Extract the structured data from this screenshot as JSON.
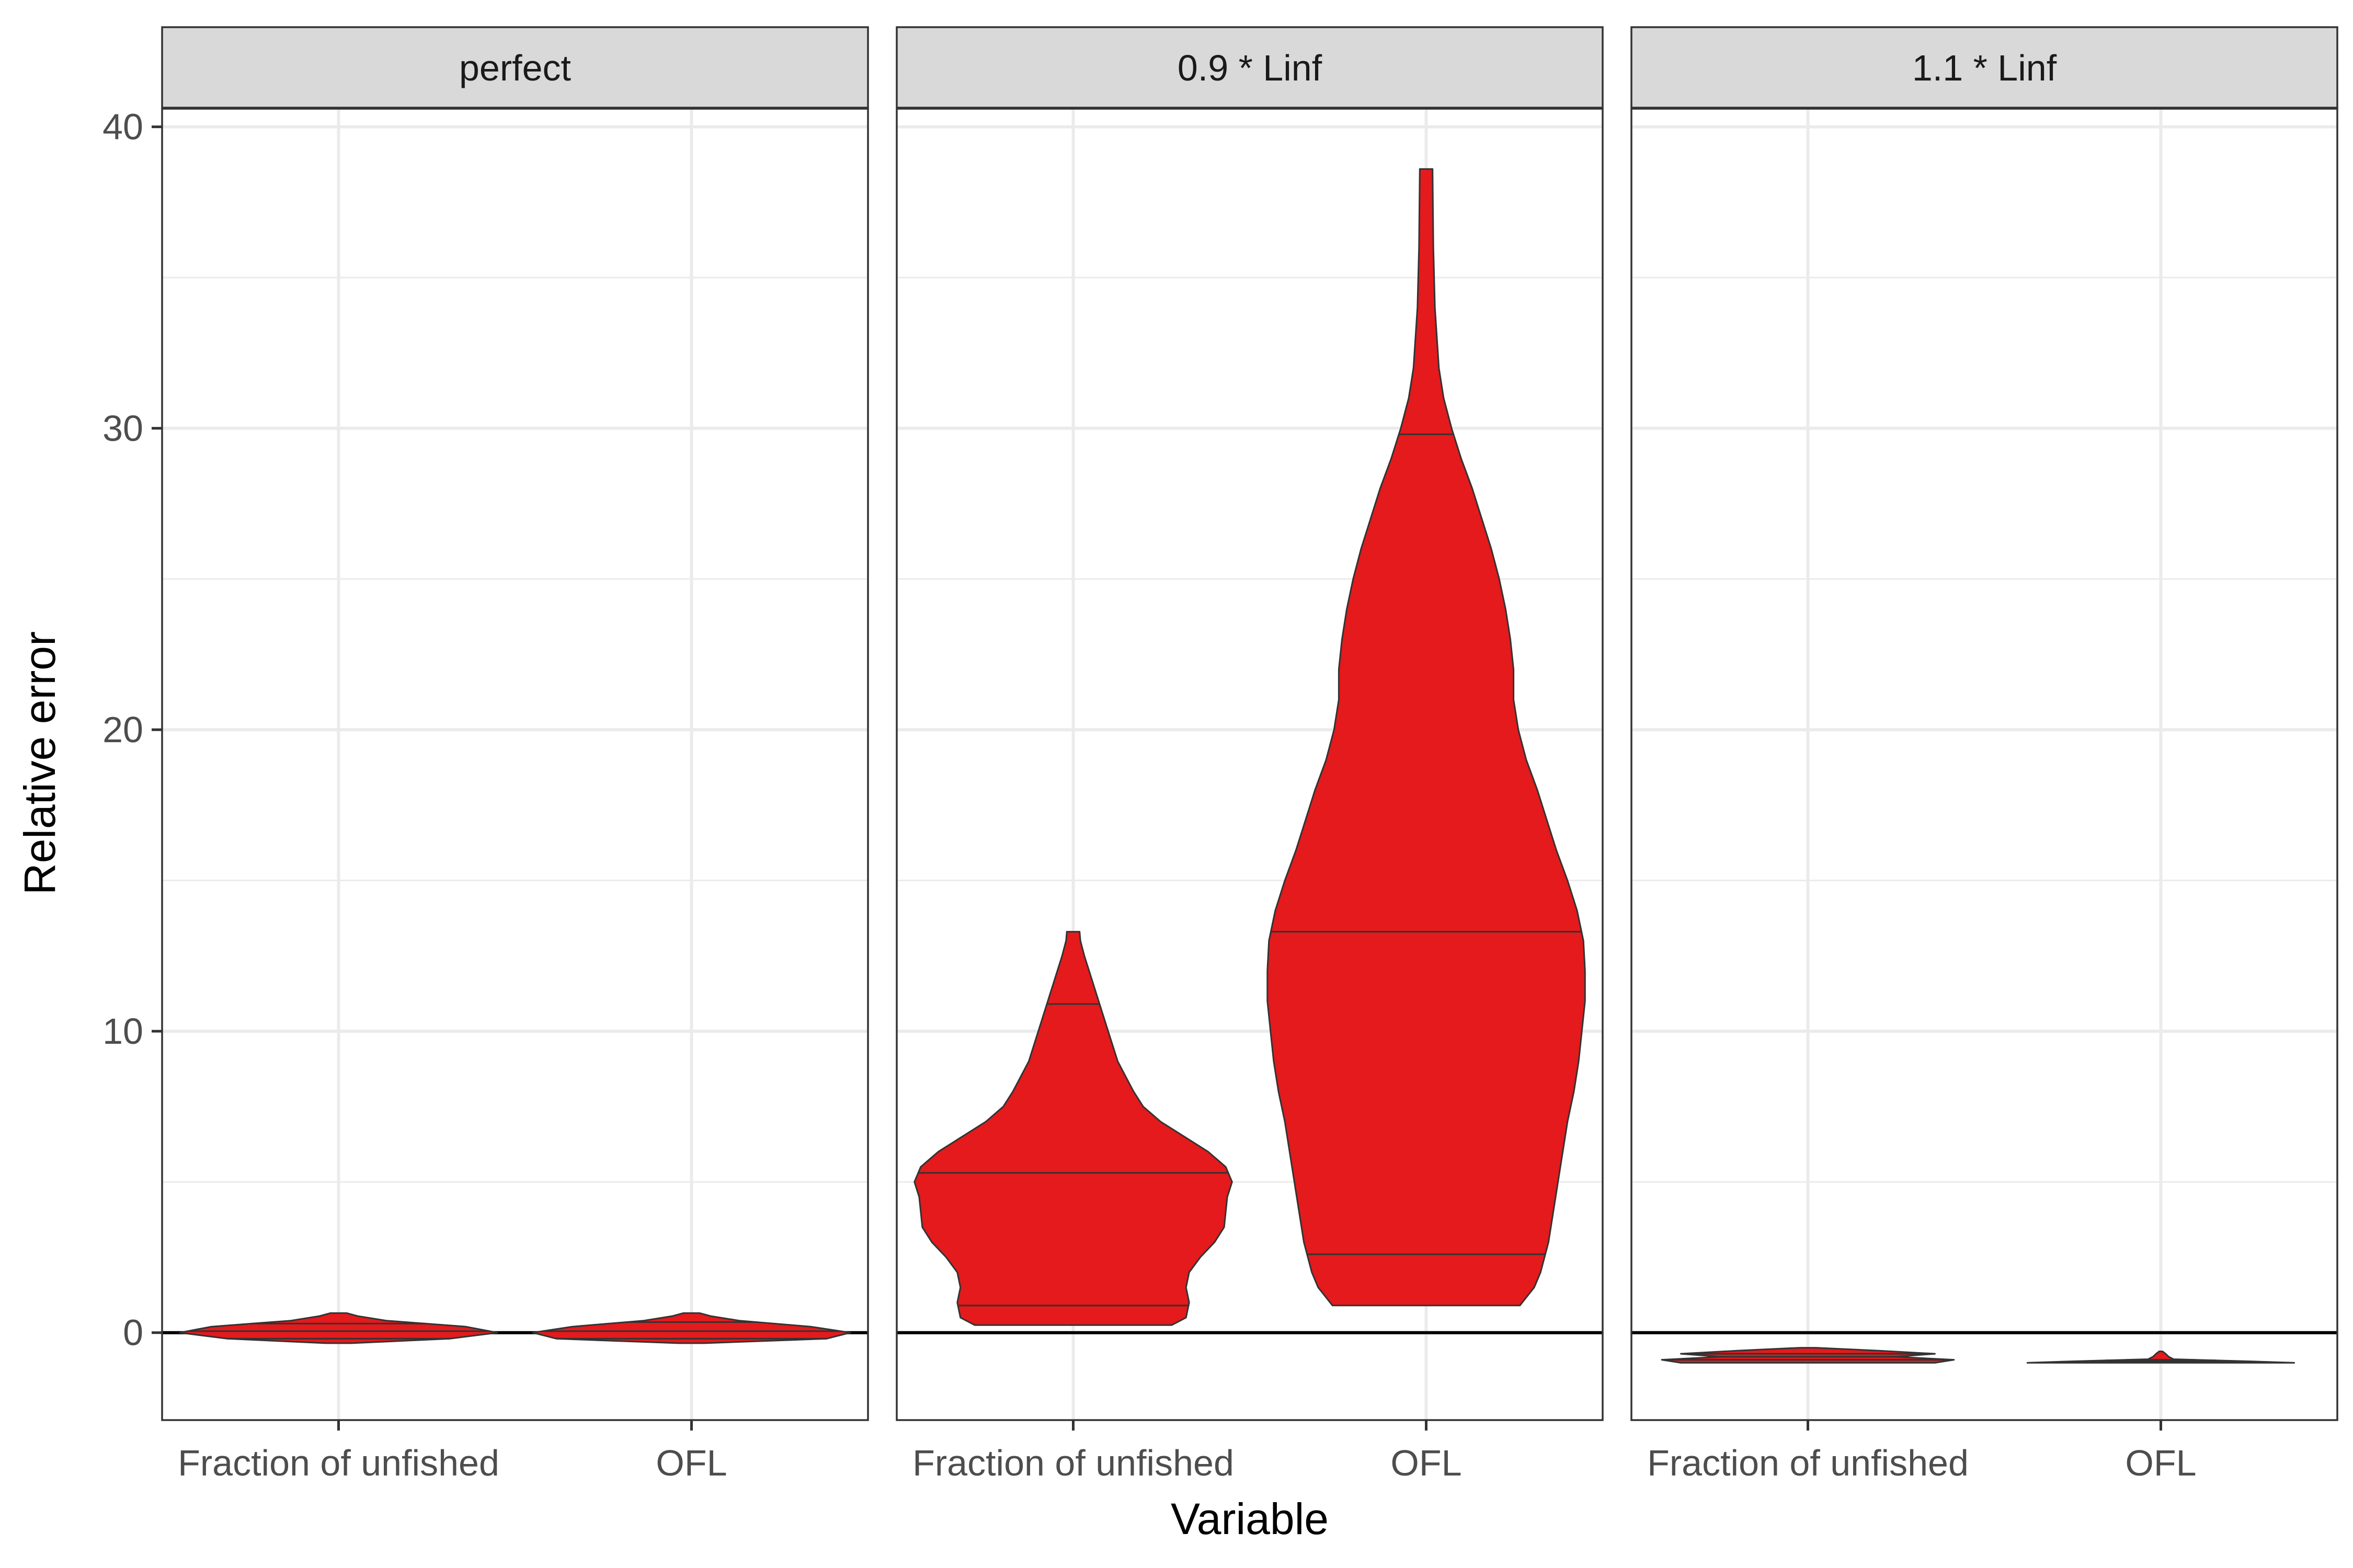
{
  "chart_data": {
    "type": "violin",
    "ylabel": "Relative error",
    "xlabel": "Variable",
    "ylim": [
      -2.9,
      40.6
    ],
    "y_ticks": [
      0,
      10,
      20,
      30,
      40
    ],
    "y_tick_labels": [
      "0",
      "10",
      "20",
      "30",
      "40"
    ],
    "categories": [
      "Fraction of unfished",
      "OFL"
    ],
    "reference_line_y": 0,
    "grid": true,
    "fill_color": "#E41A1C",
    "outline_color": "#333333",
    "strip_fill": "#D9D9D9",
    "panels": [
      {
        "strip_label": "perfect",
        "violins": [
          {
            "category": "Fraction of unfished",
            "quantiles": [
              -0.2,
              0.05,
              0.3
            ],
            "profile": [
              [
                -0.35,
                0.08
              ],
              [
                -0.2,
                0.7
              ],
              [
                0,
                1.0
              ],
              [
                0.2,
                0.8
              ],
              [
                0.4,
                0.3
              ],
              [
                0.55,
                0.12
              ],
              [
                0.65,
                0.05
              ]
            ]
          },
          {
            "category": "OFL",
            "quantiles": [
              -0.2,
              0.05,
              0.35
            ],
            "profile": [
              [
                -0.35,
                0.08
              ],
              [
                -0.2,
                0.85
              ],
              [
                0,
                1.0
              ],
              [
                0.2,
                0.75
              ],
              [
                0.4,
                0.3
              ],
              [
                0.55,
                0.12
              ],
              [
                0.65,
                0.05
              ]
            ]
          }
        ]
      },
      {
        "strip_label": "0.9 * Linf",
        "violins": [
          {
            "category": "Fraction of unfished",
            "quantiles": [
              0.9,
              5.3,
              10.9
            ],
            "profile": [
              [
                0.25,
                0.62
              ],
              [
                0.5,
                0.71
              ],
              [
                1.0,
                0.73
              ],
              [
                1.5,
                0.71
              ],
              [
                2.0,
                0.73
              ],
              [
                2.5,
                0.8
              ],
              [
                3.0,
                0.89
              ],
              [
                3.5,
                0.95
              ],
              [
                4.0,
                0.96
              ],
              [
                4.5,
                0.97
              ],
              [
                5.0,
                1.0
              ],
              [
                5.5,
                0.96
              ],
              [
                6.0,
                0.85
              ],
              [
                6.5,
                0.7
              ],
              [
                7.0,
                0.55
              ],
              [
                7.5,
                0.44
              ],
              [
                8.0,
                0.38
              ],
              [
                8.5,
                0.33
              ],
              [
                9.0,
                0.28
              ],
              [
                10.0,
                0.22
              ],
              [
                11.0,
                0.16
              ],
              [
                12.0,
                0.1
              ],
              [
                12.5,
                0.07
              ],
              [
                13.0,
                0.045
              ],
              [
                13.3,
                0.04
              ]
            ]
          },
          {
            "category": "OFL",
            "quantiles": [
              2.6,
              13.3,
              29.8
            ],
            "profile": [
              [
                0.9,
                0.59
              ],
              [
                1.5,
                0.68
              ],
              [
                2.0,
                0.72
              ],
              [
                3.0,
                0.77
              ],
              [
                4.0,
                0.8
              ],
              [
                5.0,
                0.83
              ],
              [
                6.0,
                0.86
              ],
              [
                7.0,
                0.89
              ],
              [
                8.0,
                0.93
              ],
              [
                9.0,
                0.96
              ],
              [
                10.0,
                0.98
              ],
              [
                11.0,
                1.0
              ],
              [
                12.0,
                1.0
              ],
              [
                13.0,
                0.99
              ],
              [
                14.0,
                0.95
              ],
              [
                15.0,
                0.89
              ],
              [
                16.0,
                0.82
              ],
              [
                17.0,
                0.76
              ],
              [
                18.0,
                0.7
              ],
              [
                19.0,
                0.63
              ],
              [
                20.0,
                0.58
              ],
              [
                21.0,
                0.55
              ],
              [
                22.0,
                0.55
              ],
              [
                23.0,
                0.53
              ],
              [
                24.0,
                0.5
              ],
              [
                25.0,
                0.46
              ],
              [
                26.0,
                0.41
              ],
              [
                27.0,
                0.35
              ],
              [
                28.0,
                0.29
              ],
              [
                29.0,
                0.22
              ],
              [
                30.0,
                0.16
              ],
              [
                31.0,
                0.11
              ],
              [
                32.0,
                0.08
              ],
              [
                34.0,
                0.055
              ],
              [
                36.0,
                0.045
              ],
              [
                38.6,
                0.04
              ]
            ]
          }
        ]
      },
      {
        "strip_label": "1.1 * Linf",
        "violins": [
          {
            "category": "Fraction of unfished",
            "quantiles": [
              -0.9,
              -0.8,
              -0.7
            ],
            "profile": [
              [
                -1.0,
                0.8
              ],
              [
                -0.9,
                0.92
              ],
              [
                -0.8,
                0.55
              ],
              [
                -0.7,
                0.8
              ],
              [
                -0.6,
                0.45
              ],
              [
                -0.5,
                0.05
              ]
            ]
          },
          {
            "category": "OFL",
            "quantiles": [
              -0.95,
              -0.92,
              -0.9
            ],
            "profile": [
              [
                -1.0,
                0.84
              ],
              [
                -0.95,
                0.55
              ],
              [
                -0.88,
                0.08
              ],
              [
                -0.8,
                0.05
              ],
              [
                -0.7,
                0.03
              ],
              [
                -0.62,
                0.01
              ]
            ]
          }
        ]
      }
    ]
  }
}
